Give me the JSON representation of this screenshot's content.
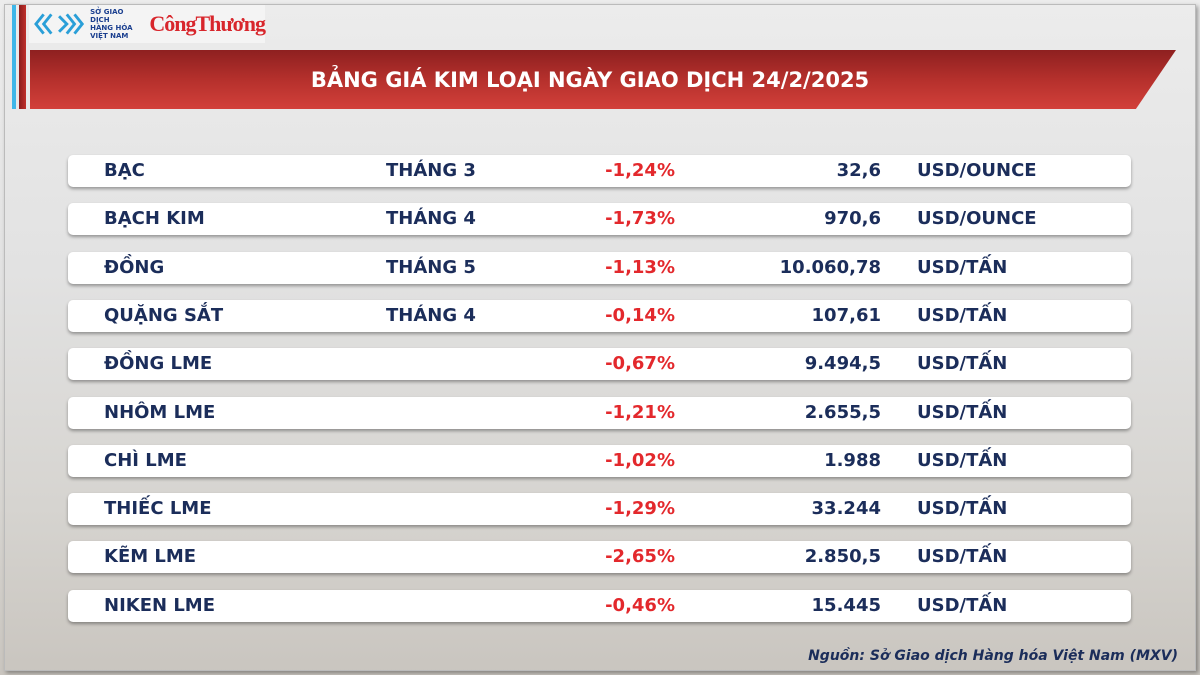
{
  "logo": {
    "exchange_lines": [
      "SỞ GIAO DỊCH",
      "HÀNG HÓA",
      "VIỆT NAM"
    ],
    "publisher": "CôngThương"
  },
  "title": "BẢNG GIÁ KIM LOẠI NGÀY GIAO DỊCH 24/2/2025",
  "colors": {
    "banner": "#b5302c",
    "negative": "#e3282c",
    "text": "#1b2d5a",
    "accent_blue": "#3fb6e8"
  },
  "rows": [
    {
      "name": "BẠC",
      "month": "THÁNG 3",
      "change": "-1,24%",
      "price": "32,6",
      "unit": "USD/OUNCE"
    },
    {
      "name": "BẠCH KIM",
      "month": "THÁNG 4",
      "change": "-1,73%",
      "price": "970,6",
      "unit": "USD/OUNCE"
    },
    {
      "name": "ĐỒNG",
      "month": "THÁNG 5",
      "change": "-1,13%",
      "price": "10.060,78",
      "unit": "USD/TẤN"
    },
    {
      "name": "QUẶNG SẮT",
      "month": "THÁNG 4",
      "change": "-0,14%",
      "price": "107,61",
      "unit": "USD/TẤN"
    },
    {
      "name": "ĐỒNG LME",
      "month": "",
      "change": "-0,67%",
      "price": "9.494,5",
      "unit": "USD/TẤN"
    },
    {
      "name": "NHÔM LME",
      "month": "",
      "change": "-1,21%",
      "price": "2.655,5",
      "unit": "USD/TẤN"
    },
    {
      "name": "CHÌ LME",
      "month": "",
      "change": "-1,02%",
      "price": "1.988",
      "unit": "USD/TẤN"
    },
    {
      "name": "THIẾC LME",
      "month": "",
      "change": "-1,29%",
      "price": "33.244",
      "unit": "USD/TẤN"
    },
    {
      "name": "KẼM LME",
      "month": "",
      "change": "-2,65%",
      "price": "2.850,5",
      "unit": "USD/TẤN"
    },
    {
      "name": "NIKEN LME",
      "month": "",
      "change": "-0,46%",
      "price": "15.445",
      "unit": "USD/TẤN"
    }
  ],
  "source": "Nguồn: Sở Giao dịch Hàng hóa Việt Nam (MXV)"
}
